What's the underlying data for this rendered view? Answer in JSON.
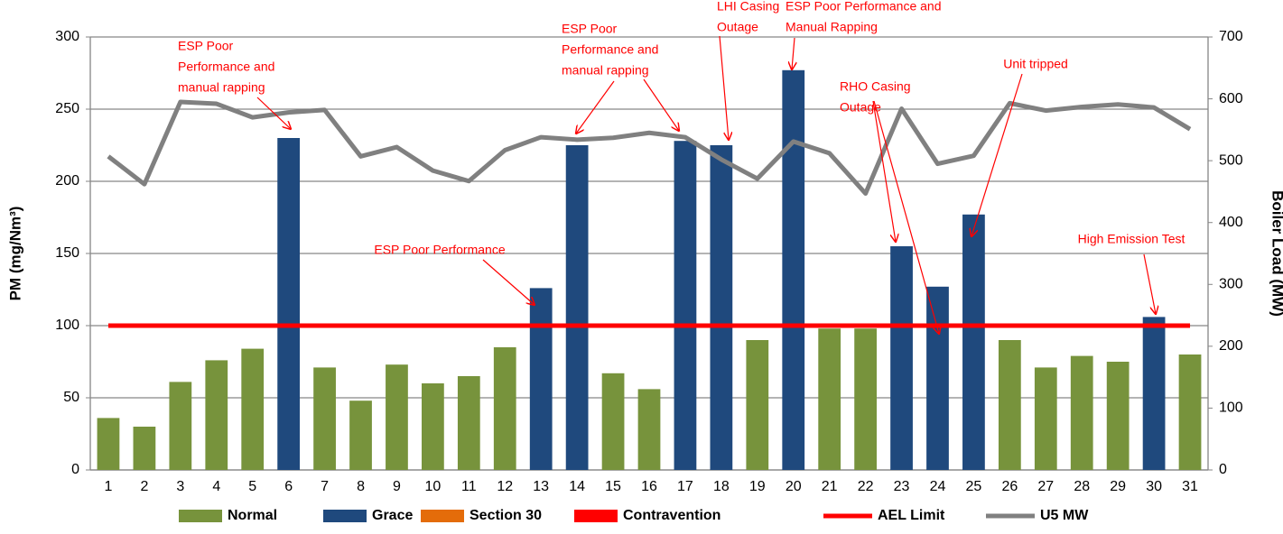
{
  "chart_data": {
    "type": "bar",
    "ylabel": "PM (mg/Nm³)",
    "y2label": "Boiler Load (MW)",
    "categories": [
      "1",
      "2",
      "3",
      "4",
      "5",
      "6",
      "7",
      "8",
      "9",
      "10",
      "11",
      "12",
      "13",
      "14",
      "15",
      "16",
      "17",
      "18",
      "19",
      "20",
      "21",
      "22",
      "23",
      "24",
      "25",
      "26",
      "27",
      "28",
      "29",
      "30",
      "31"
    ],
    "ylim": [
      0,
      300
    ],
    "yticks": [
      0,
      50,
      100,
      150,
      200,
      250,
      300
    ],
    "y2lim": [
      0,
      700
    ],
    "y2ticks": [
      0,
      100,
      200,
      300,
      400,
      500,
      600,
      700
    ],
    "grid": true,
    "legend": "bottom",
    "series": [
      {
        "name": "Normal",
        "type": "bar",
        "color": "#77933c",
        "values": [
          36,
          30,
          61,
          76,
          84,
          null,
          71,
          48,
          73,
          60,
          65,
          85,
          null,
          null,
          67,
          56,
          null,
          null,
          90,
          null,
          98,
          98,
          null,
          null,
          null,
          90,
          71,
          79,
          75,
          null,
          80
        ]
      },
      {
        "name": "Grace",
        "type": "bar",
        "color": "#1f497d",
        "values": [
          null,
          null,
          null,
          null,
          null,
          230,
          null,
          null,
          null,
          null,
          null,
          null,
          126,
          225,
          null,
          null,
          228,
          225,
          null,
          277,
          null,
          null,
          155,
          127,
          177,
          null,
          null,
          null,
          null,
          106,
          null
        ]
      },
      {
        "name": "Section 30",
        "type": "bar",
        "color": "#e46c0a",
        "values": [
          null,
          null,
          null,
          null,
          null,
          null,
          null,
          null,
          null,
          null,
          null,
          null,
          null,
          null,
          null,
          null,
          null,
          null,
          null,
          null,
          null,
          null,
          null,
          null,
          null,
          null,
          null,
          null,
          null,
          null,
          null
        ]
      },
      {
        "name": "Contravention",
        "type": "bar",
        "color": "#ff0000",
        "values": [
          null,
          null,
          null,
          null,
          null,
          null,
          null,
          null,
          null,
          null,
          null,
          null,
          null,
          null,
          null,
          null,
          null,
          null,
          null,
          null,
          null,
          null,
          null,
          null,
          null,
          null,
          null,
          null,
          null,
          null,
          null
        ]
      },
      {
        "name": "AEL Limit",
        "type": "line",
        "color": "#ff0000",
        "values": [
          100,
          100,
          100,
          100,
          100,
          100,
          100,
          100,
          100,
          100,
          100,
          100,
          100,
          100,
          100,
          100,
          100,
          100,
          100,
          100,
          100,
          100,
          100,
          100,
          100,
          100,
          100,
          100,
          100,
          100,
          100
        ]
      },
      {
        "name": "U5 MW",
        "type": "line",
        "axis": "y2",
        "color": "#808080",
        "values": [
          507,
          462,
          595,
          592,
          570,
          578,
          582,
          507,
          522,
          484,
          467,
          517,
          538,
          534,
          537,
          545,
          538,
          502,
          471,
          531,
          512,
          447,
          584,
          495,
          508,
          593,
          581,
          587,
          591,
          586,
          551
        ]
      }
    ],
    "annotations": [
      {
        "lines": [
          "ESP Poor",
          "Performance and",
          "manual rapping"
        ]
      },
      {
        "lines": [
          "ESP Poor Performance"
        ]
      },
      {
        "lines": [
          "ESP Poor",
          "Performance and",
          "manual rapping"
        ]
      },
      {
        "lines": [
          "LHI Casing",
          "Outage"
        ]
      },
      {
        "lines": [
          "ESP Poor Performance and",
          "Manual Rapping"
        ]
      },
      {
        "lines": [
          "RHO Casing",
          "Outage"
        ]
      },
      {
        "lines": [
          "Unit tripped"
        ]
      },
      {
        "lines": [
          "High Emission Test"
        ]
      }
    ]
  }
}
